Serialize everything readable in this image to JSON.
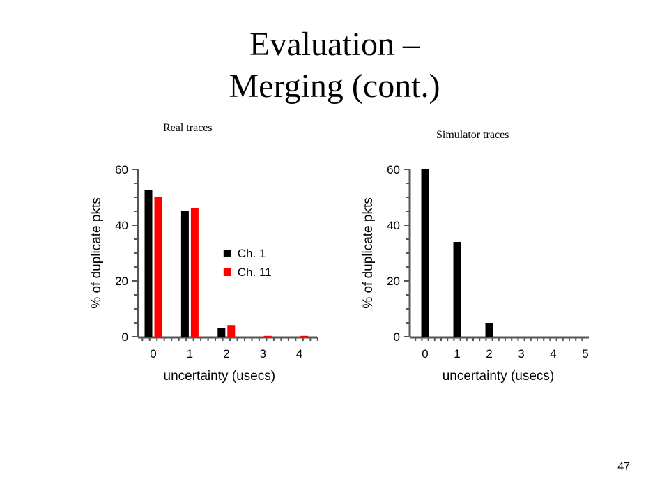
{
  "slide": {
    "title_line1": "Evaluation –",
    "title_line2": "Merging (cont.)",
    "page_number": "47"
  },
  "captions": {
    "real": "Real traces",
    "simulator": "Simulator traces"
  },
  "colors": {
    "ch1": "#000000",
    "ch11": "#ff0000"
  },
  "chart_data": [
    {
      "type": "bar",
      "id": "real",
      "xlabel": "uncertainty (usecs)",
      "ylabel": "% of duplicate pkts",
      "categories": [
        0,
        1,
        2,
        3,
        4
      ],
      "xlim": [
        -0.5,
        4.6
      ],
      "ylim": [
        0,
        60
      ],
      "yticks": [
        0,
        20,
        40,
        60
      ],
      "grid": false,
      "legend": "right",
      "series": [
        {
          "name": "Ch. 1",
          "color": "#000000",
          "values": [
            52.5,
            45,
            3,
            0,
            0
          ]
        },
        {
          "name": "Ch. 11",
          "color": "#ff0000",
          "values": [
            50,
            46,
            4.2,
            0.3,
            0.3
          ]
        }
      ]
    },
    {
      "type": "bar",
      "id": "sim",
      "xlabel": "uncertainty (usecs)",
      "ylabel": "% of duplicate pkts",
      "categories": [
        0,
        1,
        2,
        3,
        4,
        5
      ],
      "xlim": [
        -0.5,
        5
      ],
      "ylim": [
        0,
        60
      ],
      "yticks": [
        0,
        20,
        40,
        60
      ],
      "grid": false,
      "series": [
        {
          "color": "#000000",
          "values": [
            60,
            34,
            5,
            0,
            0,
            0
          ]
        }
      ]
    }
  ]
}
